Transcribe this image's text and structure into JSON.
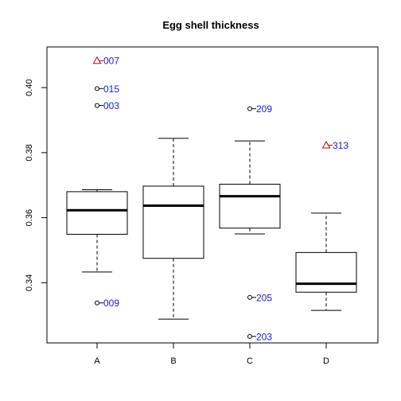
{
  "chart_data": {
    "type": "boxplot",
    "title": "Egg shell thickness",
    "xlabel": "",
    "ylabel": "",
    "categories": [
      "A",
      "B",
      "C",
      "D"
    ],
    "y_ticks": [
      0.34,
      0.36,
      0.38,
      0.4
    ],
    "y_tick_labels": [
      "0.34",
      "0.36",
      "0.38",
      "0.40"
    ],
    "ylim": [
      0.3215,
      0.4125
    ],
    "grid": false,
    "legend": "none",
    "box_color": "#000000",
    "label_color": "#1a1ad6",
    "flag_color": "#cc0000",
    "boxes": [
      {
        "category": "A",
        "whisker_low": 0.3433,
        "q1": 0.3549,
        "median": 0.3623,
        "q3": 0.368,
        "whisker_high": 0.3686,
        "outliers": [
          {
            "id": "007",
            "value": 0.4083,
            "marker": "triangle"
          },
          {
            "id": "015",
            "value": 0.3997,
            "marker": "circle"
          },
          {
            "id": "003",
            "value": 0.3945,
            "marker": "circle"
          },
          {
            "id": "009",
            "value": 0.3338,
            "marker": "circle"
          }
        ]
      },
      {
        "category": "B",
        "whisker_low": 0.3288,
        "q1": 0.3475,
        "median": 0.3637,
        "q3": 0.3697,
        "whisker_high": 0.3844,
        "outliers": []
      },
      {
        "category": "C",
        "whisker_low": 0.355,
        "q1": 0.3568,
        "median": 0.3666,
        "q3": 0.3703,
        "whisker_high": 0.3836,
        "outliers": [
          {
            "id": "209",
            "value": 0.3935,
            "marker": "circle"
          },
          {
            "id": "205",
            "value": 0.3355,
            "marker": "circle"
          },
          {
            "id": "203",
            "value": 0.3235,
            "marker": "circle"
          }
        ]
      },
      {
        "category": "D",
        "whisker_low": 0.3315,
        "q1": 0.3371,
        "median": 0.3397,
        "q3": 0.3493,
        "whisker_high": 0.3614,
        "outliers": [
          {
            "id": "313",
            "value": 0.3823,
            "marker": "triangle"
          }
        ]
      }
    ]
  }
}
